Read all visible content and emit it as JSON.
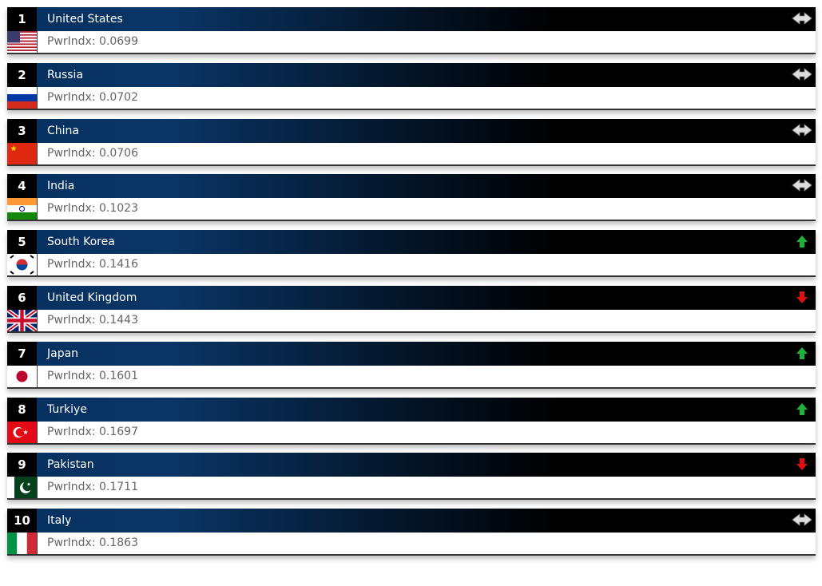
{
  "rows": [
    {
      "rank": 1,
      "name": "United States",
      "power_index": "PwrIndx: 0.0699",
      "trend": "steady"
    },
    {
      "rank": 2,
      "name": "Russia",
      "power_index": "PwrIndx: 0.0702",
      "trend": "steady"
    },
    {
      "rank": 3,
      "name": "China",
      "power_index": "PwrIndx: 0.0706",
      "trend": "steady"
    },
    {
      "rank": 4,
      "name": "India",
      "power_index": "PwrIndx: 0.1023",
      "trend": "steady"
    },
    {
      "rank": 5,
      "name": "South Korea",
      "power_index": "PwrIndx: 0.1416",
      "trend": "up"
    },
    {
      "rank": 6,
      "name": "United Kingdom",
      "power_index": "PwrIndx: 0.1443",
      "trend": "down"
    },
    {
      "rank": 7,
      "name": "Japan",
      "power_index": "PwrIndx: 0.1601",
      "trend": "up"
    },
    {
      "rank": 8,
      "name": "Turkiye",
      "power_index": "PwrIndx: 0.1697",
      "trend": "up"
    },
    {
      "rank": 9,
      "name": "Pakistan",
      "power_index": "PwrIndx: 0.1711",
      "trend": "down"
    },
    {
      "rank": 10,
      "name": "Italy",
      "power_index": "PwrIndx: 0.1863",
      "trend": "steady"
    }
  ]
}
